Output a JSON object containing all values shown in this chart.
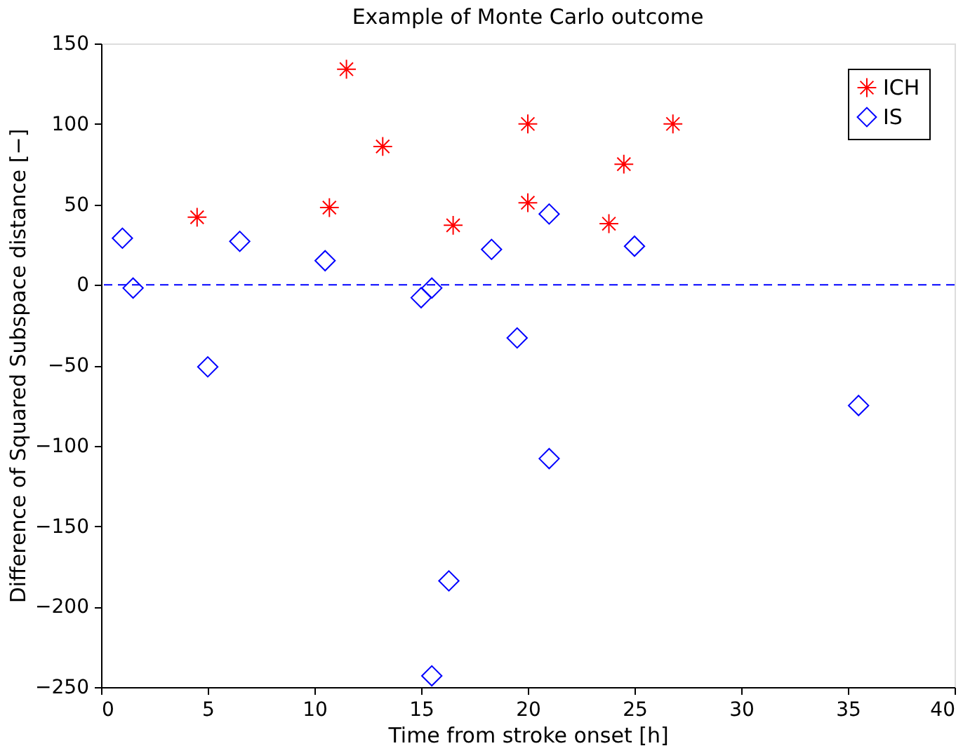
{
  "chart_data": {
    "type": "scatter",
    "title": "Example of Monte Carlo outcome",
    "xlabel": "Time from stroke onset [h]",
    "ylabel": "Difference of Squared Subspace distance [−]",
    "xlim": [
      0,
      40
    ],
    "xticks": [
      0,
      5,
      10,
      15,
      20,
      25,
      30,
      35,
      40
    ],
    "ylim": [
      -250,
      150
    ],
    "yticks": [
      -250,
      -200,
      -150,
      -100,
      -50,
      0,
      50,
      100,
      150
    ],
    "series": [
      {
        "name": "ICH",
        "color": "#ff0000",
        "marker": "cross",
        "x": [
          4.5,
          10.7,
          11.5,
          13.2,
          16.5,
          20,
          20,
          23.8,
          24.5,
          26.8
        ],
        "values": [
          42,
          48,
          134,
          86,
          37,
          100,
          51,
          38,
          75,
          100
        ]
      },
      {
        "name": "IS",
        "color": "#0000ff",
        "marker": "diamond",
        "x": [
          1,
          1.5,
          5,
          6.5,
          10.5,
          15,
          15.5,
          16.3,
          15.5,
          18.3,
          19.5,
          21,
          21,
          25,
          35.5
        ],
        "values": [
          29,
          -2,
          -51,
          27,
          15,
          -8,
          -2,
          -184,
          -243,
          22,
          -33,
          44,
          -108,
          24,
          -75
        ]
      }
    ],
    "ref_lines": [
      {
        "axis": "y",
        "value": 0,
        "color": "#0000ff",
        "line_style": "dashed"
      }
    ],
    "legend": "top right",
    "grid": false
  }
}
